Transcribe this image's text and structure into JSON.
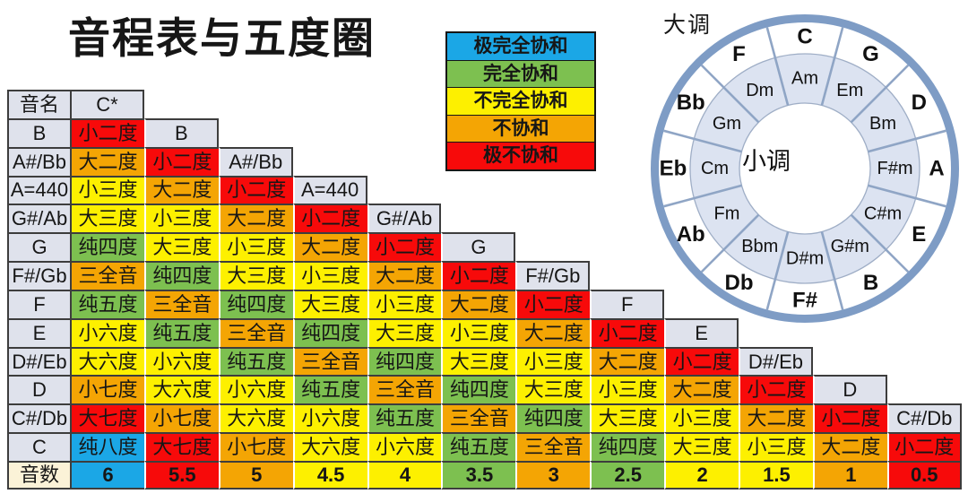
{
  "title": "音程表与五度圈",
  "colors": {
    "blue": "#1BA7E6",
    "green": "#7DC050",
    "yellow": "#FDF000",
    "orange": "#F4A504",
    "red": "#F70A0A",
    "label_bg": "#DFE2EC",
    "count_label_bg": "#FBF2D7",
    "ring_blue": "#7E9CC5",
    "ring_lavender": "#DCE3F1",
    "ring_thin_line": "#9FAEC6",
    "divider": "#8FA5C5"
  },
  "legend": [
    {
      "label": "极完全协和",
      "level": "blue"
    },
    {
      "label": "完全协和",
      "level": "green"
    },
    {
      "label": "不完全协和",
      "level": "yellow"
    },
    {
      "label": "不协和",
      "level": "orange"
    },
    {
      "label": "极不协和",
      "level": "red"
    }
  ],
  "consonance_of_interval": {
    "纯八度": "blue",
    "纯五度": "green",
    "纯四度": "green",
    "大三度": "yellow",
    "小三度": "yellow",
    "大六度": "yellow",
    "小六度": "yellow",
    "大二度": "orange",
    "小七度": "orange",
    "三全音": "orange",
    "大七度": "red",
    "小二度": "red"
  },
  "table": {
    "corner_label": "音名",
    "root_note": "C*",
    "rows": [
      {
        "note": "B",
        "intervals": [
          "小二度"
        ]
      },
      {
        "note": "A#/Bb",
        "intervals": [
          "大二度",
          "小二度"
        ]
      },
      {
        "note": "A=440",
        "intervals": [
          "小三度",
          "大二度",
          "小二度"
        ]
      },
      {
        "note": "G#/Ab",
        "intervals": [
          "大三度",
          "小三度",
          "大二度",
          "小二度"
        ]
      },
      {
        "note": "G",
        "intervals": [
          "纯四度",
          "大三度",
          "小三度",
          "大二度",
          "小二度"
        ]
      },
      {
        "note": "F#/Gb",
        "intervals": [
          "三全音",
          "纯四度",
          "大三度",
          "小三度",
          "大二度",
          "小二度"
        ]
      },
      {
        "note": "F",
        "intervals": [
          "纯五度",
          "三全音",
          "纯四度",
          "大三度",
          "小三度",
          "大二度",
          "小二度"
        ]
      },
      {
        "note": "E",
        "intervals": [
          "小六度",
          "纯五度",
          "三全音",
          "纯四度",
          "大三度",
          "小三度",
          "大二度",
          "小二度"
        ]
      },
      {
        "note": "D#/Eb",
        "intervals": [
          "大六度",
          "小六度",
          "纯五度",
          "三全音",
          "纯四度",
          "大三度",
          "小三度",
          "大二度",
          "小二度"
        ]
      },
      {
        "note": "D",
        "intervals": [
          "小七度",
          "大六度",
          "小六度",
          "纯五度",
          "三全音",
          "纯四度",
          "大三度",
          "小三度",
          "大二度",
          "小二度"
        ]
      },
      {
        "note": "C#/Db",
        "intervals": [
          "大七度",
          "小七度",
          "大六度",
          "小六度",
          "纯五度",
          "三全音",
          "纯四度",
          "大三度",
          "小三度",
          "大二度",
          "小二度"
        ]
      },
      {
        "note": "C",
        "intervals": [
          "纯八度",
          "大七度",
          "小七度",
          "大六度",
          "小六度",
          "纯五度",
          "三全音",
          "纯四度",
          "大三度",
          "小三度",
          "大二度",
          "小二度"
        ]
      }
    ],
    "count_label": "音数",
    "counts": [
      "6",
      "5.5",
      "5",
      "4.5",
      "4",
      "3.5",
      "3",
      "2.5",
      "2",
      "1.5",
      "1",
      "0.5"
    ],
    "count_levels": [
      "blue",
      "red",
      "orange",
      "yellow",
      "yellow",
      "green",
      "orange",
      "green",
      "yellow",
      "yellow",
      "orange",
      "red"
    ]
  },
  "circle_of_fifths": {
    "outer_label": "大调",
    "center_label": "小调",
    "major_keys": [
      "C",
      "G",
      "D",
      "A",
      "E",
      "B",
      "F#",
      "Db",
      "Ab",
      "Eb",
      "Bb",
      "F"
    ],
    "minor_keys": [
      "Am",
      "Em",
      "Bm",
      "F#m",
      "C#m",
      "G#m",
      "D#m",
      "Bbm",
      "Fm",
      "Cm",
      "Gm",
      "Dm"
    ]
  }
}
